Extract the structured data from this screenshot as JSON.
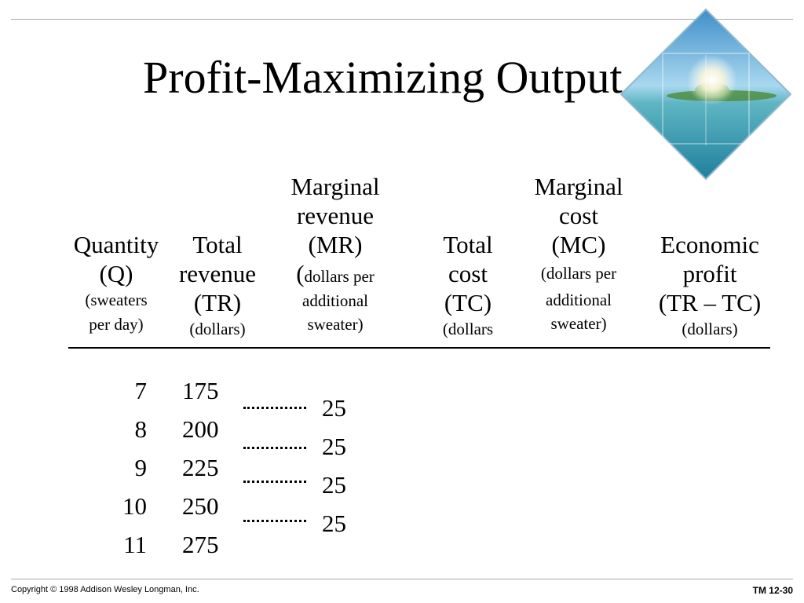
{
  "title": "Profit-Maximizing Output",
  "decoration": {
    "name": "tropical island photo"
  },
  "columns": {
    "quantity": {
      "lines": [
        "Quantity",
        "(Q)"
      ],
      "sub": [
        "(sweaters",
        "per day)"
      ]
    },
    "total_revenue": {
      "lines": [
        "Total",
        "revenue",
        "(TR)"
      ],
      "sub": [
        "(dollars)"
      ]
    },
    "marginal_revenue": {
      "lines": [
        "Marginal",
        "revenue",
        "(MR)"
      ],
      "paren": "(",
      "sub_inline": "dollars per",
      "sub": [
        "additional",
        "sweater)"
      ]
    },
    "total_cost": {
      "lines": [
        "Total",
        "cost",
        "(TC)"
      ],
      "sub": [
        "(dollars"
      ]
    },
    "marginal_cost": {
      "lines": [
        "Marginal",
        "cost",
        "(MC)"
      ],
      "sub": [
        "(dollars per",
        "additional",
        "sweater)"
      ]
    },
    "economic_profit": {
      "lines": [
        "Economic",
        "profit",
        "(TR – TC)"
      ],
      "sub": [
        "(dollars)"
      ]
    }
  },
  "rows": [
    {
      "q": "7",
      "tr": "175"
    },
    {
      "q": "8",
      "tr": "200"
    },
    {
      "q": "9",
      "tr": "225"
    },
    {
      "q": "10",
      "tr": "250"
    },
    {
      "q": "11",
      "tr": "275"
    }
  ],
  "mr_values": [
    "25",
    "25",
    "25",
    "25"
  ],
  "footer": {
    "copyright": "Copyright © 1998 Addison Wesley Longman, Inc.",
    "slide_id": "TM 12-30"
  }
}
